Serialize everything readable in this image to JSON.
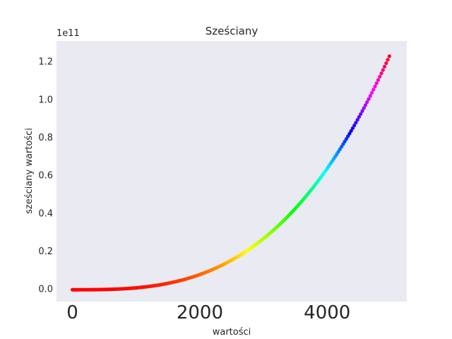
{
  "chart_data": {
    "type": "scatter",
    "title": "Sześciany",
    "xlabel": "wartości",
    "ylabel": "sześciany wartości",
    "y_offset_label": "1e11",
    "x_range": [
      1,
      5000
    ],
    "formula": "y = x^3",
    "colormap": "hsv, mapped by y value",
    "xlim": [
      -250,
      5250
    ],
    "ylim": [
      -6250000000,
      131250000000
    ],
    "x_ticks": [
      0,
      2000,
      4000
    ],
    "x_tick_labels": [
      "0",
      "2000",
      "4000"
    ],
    "y_ticks": [
      0,
      20000000000,
      40000000000,
      60000000000,
      80000000000,
      100000000000,
      120000000000
    ],
    "y_tick_labels": [
      "0.0",
      "0.2",
      "0.4",
      "0.6",
      "0.8",
      "1.0",
      "1.2"
    ],
    "grid": false,
    "background": "#eaeaf2"
  }
}
